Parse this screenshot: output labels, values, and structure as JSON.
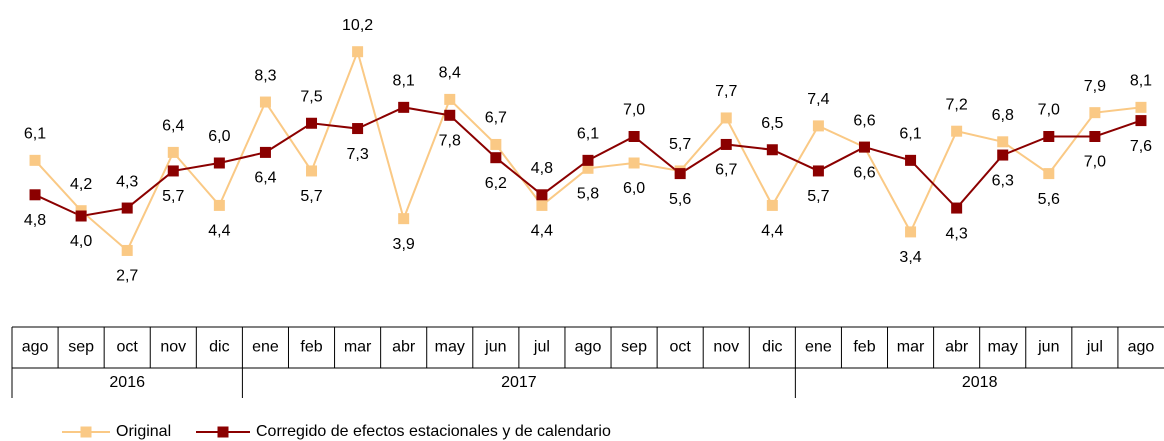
{
  "chart_data": {
    "type": "line",
    "categories": [
      "ago",
      "sep",
      "oct",
      "nov",
      "dic",
      "ene",
      "feb",
      "mar",
      "abr",
      "may",
      "jun",
      "jul",
      "ago",
      "sep",
      "oct",
      "nov",
      "dic",
      "ene",
      "feb",
      "mar",
      "abr",
      "may",
      "jun",
      "jul",
      "ago"
    ],
    "category_years": [
      "2016",
      "2016",
      "2016",
      "2016",
      "2016",
      "2017",
      "2017",
      "2017",
      "2017",
      "2017",
      "2017",
      "2017",
      "2017",
      "2017",
      "2017",
      "2017",
      "2017",
      "2018",
      "2018",
      "2018",
      "2018",
      "2018",
      "2018",
      "2018",
      "2018"
    ],
    "ylim": [
      0,
      11
    ],
    "legend": "bottom",
    "series": [
      {
        "name": "Original",
        "color": "#fac985",
        "values": [
          6.1,
          4.2,
          2.7,
          6.4,
          4.4,
          8.3,
          5.7,
          10.2,
          3.9,
          8.4,
          6.7,
          4.4,
          5.8,
          6.0,
          5.7,
          7.7,
          4.4,
          7.4,
          6.6,
          3.4,
          7.2,
          6.8,
          5.6,
          7.9,
          8.1
        ],
        "value_labels": [
          "6,1",
          "4,2",
          "2,7",
          "6,4",
          "4,4",
          "8,3",
          "5,7",
          "10,2",
          "3,9",
          "8,4",
          "6,7",
          "4,4",
          "5,8",
          "6,0",
          "5,7",
          "7,7",
          "4,4",
          "7,4",
          "6,6",
          "3,4",
          "7,2",
          "6,8",
          "5,6",
          "7,9",
          "8,1"
        ]
      },
      {
        "name": "Corregido de efectos estacionales y de calendario",
        "color": "#8b0000",
        "values": [
          4.8,
          4.0,
          4.3,
          5.7,
          6.0,
          6.4,
          7.5,
          7.3,
          8.1,
          7.8,
          6.2,
          4.8,
          6.1,
          7.0,
          5.6,
          6.7,
          6.5,
          5.7,
          6.6,
          6.1,
          4.3,
          6.3,
          7.0,
          7.0,
          7.6
        ],
        "value_labels": [
          "4,8",
          "4,0",
          "4,3",
          "5,7",
          "6,0",
          "6,4",
          "7,5",
          "7,3",
          "8,1",
          "7,8",
          "6,2",
          "4,8",
          "6,1",
          "7,0",
          "5,6",
          "6,7",
          "6,5",
          "5,7",
          "6,6",
          "6,1",
          "4,3",
          "6,3",
          "7,0",
          "7,0",
          "7,6"
        ]
      }
    ]
  }
}
